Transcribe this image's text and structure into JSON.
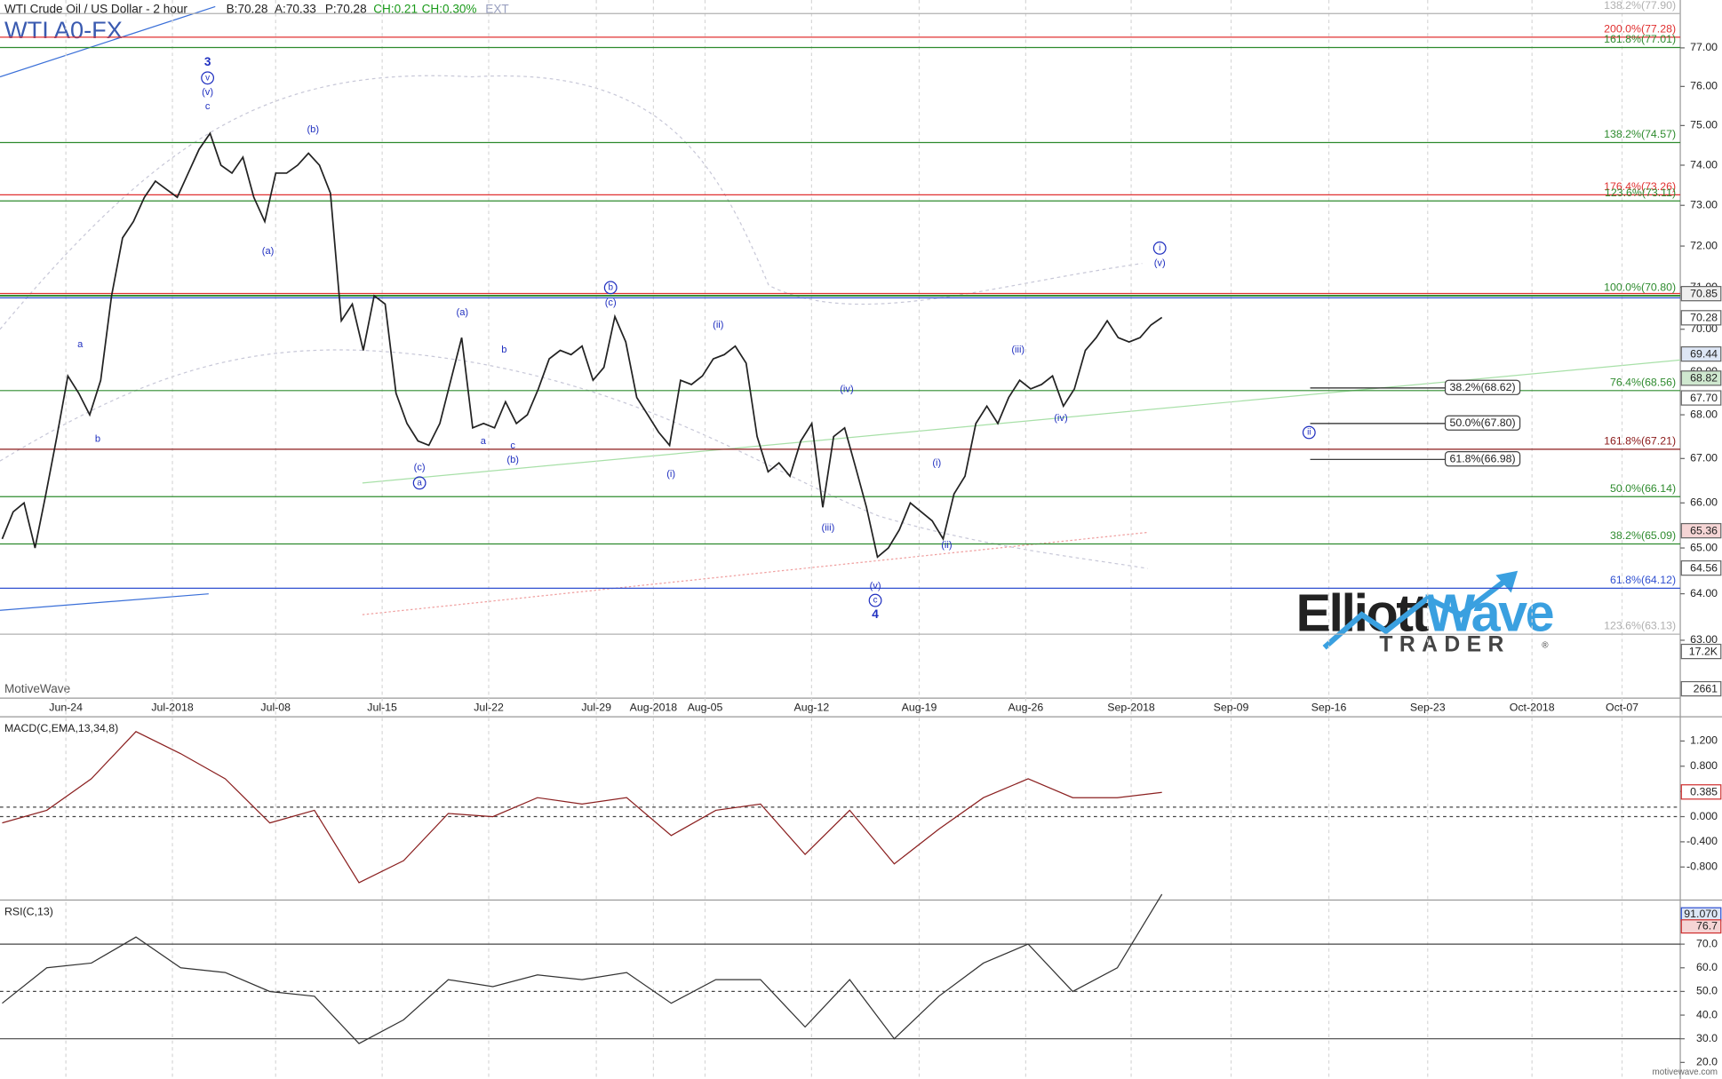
{
  "header": {
    "title": "WTI Crude Oil / US Dollar - 2 hour",
    "bid": "B:70.28",
    "ask": "A:70.33",
    "price": "P:70.28",
    "change": "CH:0.21",
    "change_pct": "CH:0.30%",
    "ext": "EXT",
    "symbol": "WTI A0-FX"
  },
  "watermark": {
    "brand": "MotiveWave",
    "site": "motivewave.com",
    "logo_1": "Elliott",
    "logo_2": "Wave",
    "logo_3": "TRADER",
    "logo_mark": "®"
  },
  "chart_data": [
    {
      "type": "line",
      "log_scale": true,
      "ylim": [
        61.8,
        78.2
      ],
      "yticks": [
        {
          "value": 63,
          "label": "63.00"
        },
        {
          "value": 64,
          "label": "64.00"
        },
        {
          "value": 65,
          "label": "65.00"
        },
        {
          "value": 66,
          "label": "66.00"
        },
        {
          "value": 67,
          "label": "67.00"
        },
        {
          "value": 68,
          "label": "68.00"
        },
        {
          "value": 69,
          "label": "69.00"
        },
        {
          "value": 70,
          "label": "70.00"
        },
        {
          "value": 71,
          "label": "71.00"
        },
        {
          "value": 72,
          "label": "72.00"
        },
        {
          "value": 73,
          "label": "73.00"
        },
        {
          "value": 74,
          "label": "74.00"
        },
        {
          "value": 75,
          "label": "75.00"
        },
        {
          "value": 76,
          "label": "76.00"
        },
        {
          "value": 77,
          "label": "77.00"
        }
      ],
      "x_labels": [
        "Jun-24",
        "Jul-2018",
        "Jul-08",
        "Jul-15",
        "Jul-22",
        "Jul-29",
        "Aug-2018",
        "Aug-05",
        "Aug-12",
        "Aug-19",
        "Aug-26",
        "Sep-2018",
        "Sep-09",
        "Sep-16",
        "Sep-23",
        "Oct-2018",
        "Oct-07"
      ],
      "series": [
        {
          "color": "#222222",
          "values": [
            65.2,
            65.8,
            66.0,
            65.0,
            66.2,
            67.5,
            68.9,
            68.5,
            68.0,
            68.8,
            70.8,
            72.2,
            72.6,
            73.2,
            73.6,
            73.4,
            73.2,
            73.8,
            74.4,
            74.8,
            74.0,
            73.8,
            74.2,
            73.2,
            72.6,
            73.8,
            73.8,
            74.0,
            74.3,
            74.0,
            73.3,
            70.2,
            70.6,
            69.5,
            70.8,
            70.6,
            68.5,
            67.8,
            67.4,
            67.3,
            67.8,
            68.8,
            69.8,
            67.7,
            67.8,
            67.7,
            68.3,
            67.8,
            68.0,
            68.6,
            69.3,
            69.5,
            69.4,
            69.6,
            68.8,
            69.1,
            70.3,
            69.7,
            68.4,
            68.0,
            67.6,
            67.3,
            68.8,
            68.7,
            68.9,
            69.3,
            69.4,
            69.6,
            69.2,
            67.5,
            66.7,
            66.9,
            66.6,
            67.4,
            67.8,
            65.9,
            67.5,
            67.7,
            66.8,
            65.9,
            64.8,
            65.0,
            65.4,
            66.0,
            65.8,
            65.6,
            65.2,
            66.2,
            66.6,
            67.8,
            68.2,
            67.8,
            68.4,
            68.8,
            68.6,
            68.7,
            68.9,
            68.2,
            68.6,
            69.5,
            69.8,
            70.2,
            69.8,
            69.7,
            69.8,
            70.1,
            70.28
          ]
        }
      ],
      "levels": [
        {
          "label": "138.2%(77.90)",
          "value": 77.9,
          "color": "#b0b0b0"
        },
        {
          "label": "200.0%(77.28)",
          "value": 77.28,
          "color": "#e03030"
        },
        {
          "label": "161.8%(77.01)",
          "value": 77.01,
          "color": "#2e8b2e"
        },
        {
          "label": "138.2%(74.57)",
          "value": 74.57,
          "color": "#2e8b2e"
        },
        {
          "label": "176.4%(73.26)",
          "value": 73.26,
          "color": "#e03030"
        },
        {
          "label": "123.6%(73.11)",
          "value": 73.11,
          "color": "#2e8b2e"
        },
        {
          "label": "100.0%(70.80)",
          "value": 70.8,
          "color": "#2e8b2e"
        },
        {
          "label": "76.4%(68.56)",
          "value": 68.56,
          "color": "#2e8b2e"
        },
        {
          "label": "161.8%(67.21)",
          "value": 67.21,
          "color": "#8b1a1a"
        },
        {
          "label": "50.0%(66.14)",
          "value": 66.14,
          "color": "#2e8b2e"
        },
        {
          "label": "38.2%(65.09)",
          "value": 65.09,
          "color": "#2e8b2e"
        },
        {
          "label": "61.8%(64.12)",
          "value": 64.12,
          "color": "#3050d0"
        },
        {
          "label": "123.6%(63.13)",
          "value": 63.13,
          "color": "#b0b0b0"
        }
      ],
      "retracements": [
        {
          "label": "38.2%(68.62)",
          "value": 68.62
        },
        {
          "label": "50.0%(67.80)",
          "value": 67.8
        },
        {
          "label": "61.8%(66.98)",
          "value": 66.98
        }
      ],
      "axis_tags": [
        "70.85",
        "70.28",
        "69.44",
        "68.82",
        "67.70",
        "65.36",
        "64.56",
        "17.2K",
        "2661"
      ],
      "annotations": [
        {
          "text": "3"
        },
        {
          "text": "v",
          "circled": true
        },
        {
          "text": "(v)"
        },
        {
          "text": "c"
        },
        {
          "text": "(b)"
        },
        {
          "text": "(a)"
        },
        {
          "text": "a"
        },
        {
          "text": "b"
        },
        {
          "text": "(a)"
        },
        {
          "text": "b"
        },
        {
          "text": "a"
        },
        {
          "text": "c"
        },
        {
          "text": "(b)"
        },
        {
          "text": "(c)"
        },
        {
          "text": "a",
          "circled": true
        },
        {
          "text": "b",
          "circled": true
        },
        {
          "text": "(c)"
        },
        {
          "text": "(ii)"
        },
        {
          "text": "(i)"
        },
        {
          "text": "(iv)"
        },
        {
          "text": "(iii)"
        },
        {
          "text": "(i)"
        },
        {
          "text": "(ii)"
        },
        {
          "text": "(v)"
        },
        {
          "text": "c",
          "circled": true
        },
        {
          "text": "4"
        },
        {
          "text": "(iii)"
        },
        {
          "text": "(iv)"
        },
        {
          "text": "i",
          "circled": true
        },
        {
          "text": "(v)"
        },
        {
          "text": "ii",
          "circled": true
        }
      ]
    },
    {
      "type": "line",
      "title": "MACD(C,EMA,13,34,8)",
      "ylim": [
        -1.29,
        1.55
      ],
      "yticks": [
        {
          "value": 1.2,
          "label": "1.200"
        },
        {
          "value": 0.8,
          "label": "0.800"
        },
        {
          "value": 0.4,
          "label": "0.400"
        },
        {
          "value": 0,
          "label": "0.000"
        },
        {
          "value": -0.4,
          "label": "-0.400"
        },
        {
          "value": -0.8,
          "label": "-0.800"
        }
      ],
      "hlines": [
        0.15,
        0
      ],
      "last_label": "0.385",
      "series": [
        {
          "color": "#8b2020",
          "values": [
            -0.1,
            0.1,
            0.6,
            1.35,
            1.0,
            0.6,
            -0.1,
            0.1,
            -1.05,
            -0.7,
            0.05,
            0.0,
            0.3,
            0.2,
            0.3,
            -0.3,
            0.1,
            0.2,
            -0.6,
            0.1,
            -0.75,
            -0.2,
            0.3,
            0.6,
            0.3,
            0.3,
            0.385
          ]
        }
      ]
    },
    {
      "type": "line",
      "title": "RSI(C,13)",
      "ylim": [
        13,
        87.7
      ],
      "yticks": [
        {
          "value": 20,
          "label": "20.0"
        },
        {
          "value": 30,
          "label": "30.0"
        },
        {
          "value": 40,
          "label": "40.0"
        },
        {
          "value": 50,
          "label": "50.0"
        },
        {
          "value": 60,
          "label": "60.0"
        },
        {
          "value": 70,
          "label": "70.0"
        }
      ],
      "hlines": [
        70,
        50,
        30
      ],
      "tags": [
        "91.070",
        "76.7"
      ],
      "series": [
        {
          "color": "#333333",
          "values": [
            45,
            60,
            62,
            73,
            60,
            58,
            50,
            48,
            28,
            38,
            55,
            52,
            57,
            55,
            58,
            45,
            55,
            55,
            35,
            55,
            30,
            48,
            62,
            70,
            50,
            60,
            91.07
          ]
        }
      ]
    }
  ]
}
